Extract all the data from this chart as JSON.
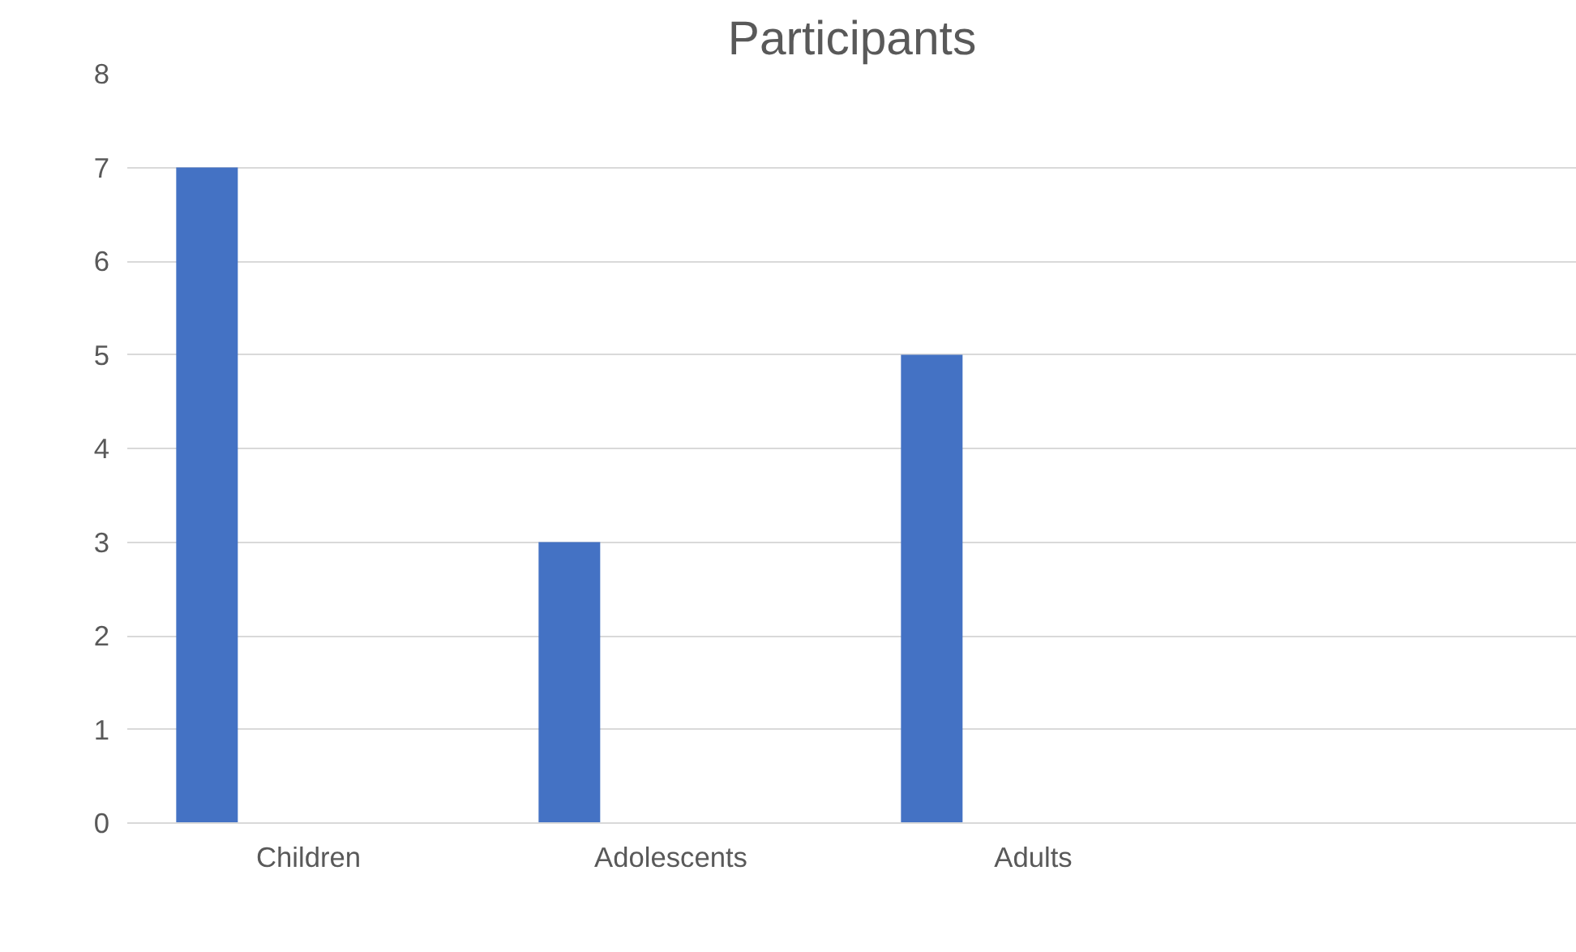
{
  "chart_data": {
    "type": "bar",
    "title": "Participants",
    "categories": [
      "Children",
      "Adolescents",
      "Adults",
      null
    ],
    "values": [
      7,
      3,
      5,
      null
    ],
    "color": "#4472c4",
    "ylim": [
      0,
      8
    ],
    "yticks": [
      0,
      1,
      2,
      3,
      4,
      5,
      6,
      7,
      8
    ],
    "grid": "y"
  }
}
